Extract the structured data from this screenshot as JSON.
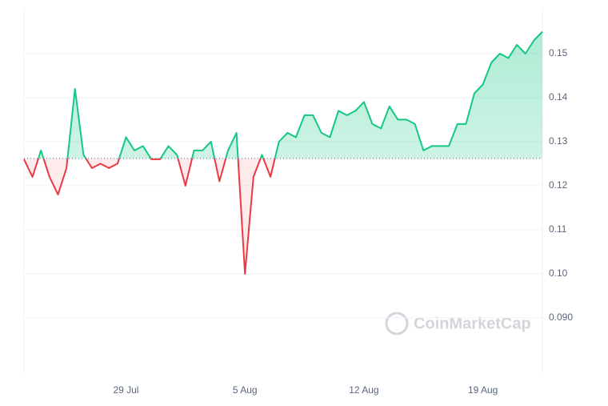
{
  "chart_data": {
    "type": "line",
    "categories": [
      null,
      null,
      null,
      null,
      null,
      null,
      null,
      null,
      null,
      null,
      null,
      null,
      "29 Jul",
      null,
      null,
      null,
      null,
      null,
      null,
      null,
      null,
      null,
      null,
      null,
      null,
      null,
      "5 Aug",
      null,
      null,
      null,
      null,
      null,
      null,
      null,
      null,
      null,
      null,
      null,
      null,
      null,
      "12 Aug",
      null,
      null,
      null,
      null,
      null,
      null,
      null,
      null,
      null,
      null,
      null,
      null,
      null,
      "19 Aug",
      null,
      null,
      null,
      null,
      null,
      null,
      null
    ],
    "series": [
      {
        "values": [
          0.126,
          0.122,
          0.128,
          0.122,
          0.118,
          0.124,
          0.142,
          0.127,
          0.124,
          0.125,
          0.124,
          0.125,
          0.131,
          0.128,
          0.129,
          0.126,
          0.126,
          0.129,
          0.127,
          0.12,
          0.128,
          0.128,
          0.13,
          0.121,
          0.128,
          0.132,
          0.1,
          0.122,
          0.127,
          0.122,
          0.13,
          0.132,
          0.131,
          0.136,
          0.136,
          0.132,
          0.131,
          0.137,
          0.136,
          0.137,
          0.139,
          0.134,
          0.133,
          0.138,
          0.135,
          0.135,
          0.134,
          0.128,
          0.129,
          0.129,
          0.129,
          0.134,
          0.134,
          0.141,
          0.143,
          0.148,
          0.15,
          0.149,
          0.152,
          0.15,
          0.153,
          0.155
        ]
      }
    ],
    "baseline": 0.1262,
    "up_color": "#16c784",
    "down_color": "#ea3943",
    "ylim": [
      0.0776,
      0.16
    ],
    "yticks": [
      {
        "value": 0.09,
        "label": "0.090"
      },
      {
        "value": 0.1,
        "label": "0.10"
      },
      {
        "value": 0.11,
        "label": "0.11"
      },
      {
        "value": 0.12,
        "label": "0.12"
      },
      {
        "value": 0.13,
        "label": "0.13"
      },
      {
        "value": 0.14,
        "label": "0.14"
      },
      {
        "value": 0.15,
        "label": "0.15"
      }
    ],
    "grid": true,
    "watermark": "CoinMarketCap"
  }
}
